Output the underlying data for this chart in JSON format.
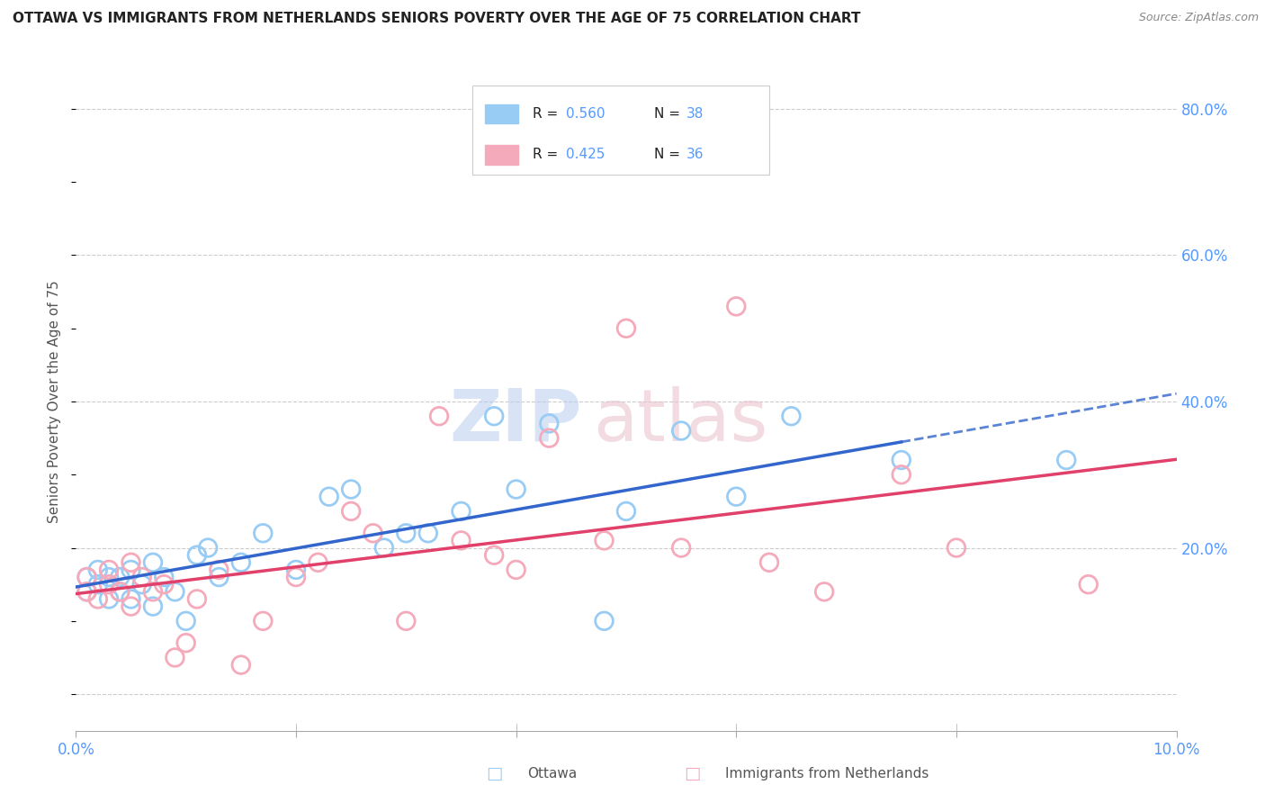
{
  "title": "OTTAWA VS IMMIGRANTS FROM NETHERLANDS SENIORS POVERTY OVER THE AGE OF 75 CORRELATION CHART",
  "source": "Source: ZipAtlas.com",
  "tick_color": "#5599ff",
  "ylabel": "Seniors Poverty Over the Age of 75",
  "xlim": [
    0.0,
    0.1
  ],
  "ylim": [
    -0.05,
    0.85
  ],
  "background_color": "#ffffff",
  "grid_color": "#cccccc",
  "ottawa_color": "#99ccf5",
  "netherlands_color": "#f5aabb",
  "ottawa_line_color": "#3366cc",
  "netherlands_line_color": "#e0406a",
  "legend_r_ottawa": "0.560",
  "legend_n_ottawa": "38",
  "legend_r_netherlands": "0.425",
  "legend_n_netherlands": "36",
  "ottawa_x": [
    0.001,
    0.001,
    0.002,
    0.002,
    0.003,
    0.003,
    0.004,
    0.004,
    0.005,
    0.005,
    0.006,
    0.007,
    0.007,
    0.008,
    0.009,
    0.01,
    0.011,
    0.012,
    0.013,
    0.015,
    0.017,
    0.02,
    0.023,
    0.025,
    0.028,
    0.03,
    0.032,
    0.035,
    0.038,
    0.04,
    0.043,
    0.048,
    0.05,
    0.055,
    0.06,
    0.065,
    0.075,
    0.09
  ],
  "ottawa_y": [
    0.16,
    0.14,
    0.17,
    0.15,
    0.16,
    0.13,
    0.14,
    0.16,
    0.13,
    0.17,
    0.15,
    0.12,
    0.18,
    0.16,
    0.14,
    0.1,
    0.19,
    0.2,
    0.16,
    0.18,
    0.22,
    0.17,
    0.27,
    0.28,
    0.2,
    0.22,
    0.22,
    0.25,
    0.38,
    0.28,
    0.37,
    0.1,
    0.25,
    0.36,
    0.27,
    0.38,
    0.32,
    0.32
  ],
  "netherlands_x": [
    0.001,
    0.001,
    0.002,
    0.003,
    0.003,
    0.004,
    0.005,
    0.005,
    0.006,
    0.007,
    0.008,
    0.009,
    0.01,
    0.011,
    0.013,
    0.015,
    0.017,
    0.02,
    0.022,
    0.025,
    0.027,
    0.03,
    0.033,
    0.035,
    0.038,
    0.04,
    0.043,
    0.048,
    0.05,
    0.055,
    0.06,
    0.063,
    0.068,
    0.075,
    0.08,
    0.092
  ],
  "netherlands_y": [
    0.16,
    0.14,
    0.13,
    0.17,
    0.15,
    0.14,
    0.18,
    0.12,
    0.16,
    0.14,
    0.15,
    0.05,
    0.07,
    0.13,
    0.17,
    0.04,
    0.1,
    0.16,
    0.18,
    0.25,
    0.22,
    0.1,
    0.38,
    0.21,
    0.19,
    0.17,
    0.35,
    0.21,
    0.5,
    0.2,
    0.53,
    0.18,
    0.14,
    0.3,
    0.2,
    0.15
  ]
}
